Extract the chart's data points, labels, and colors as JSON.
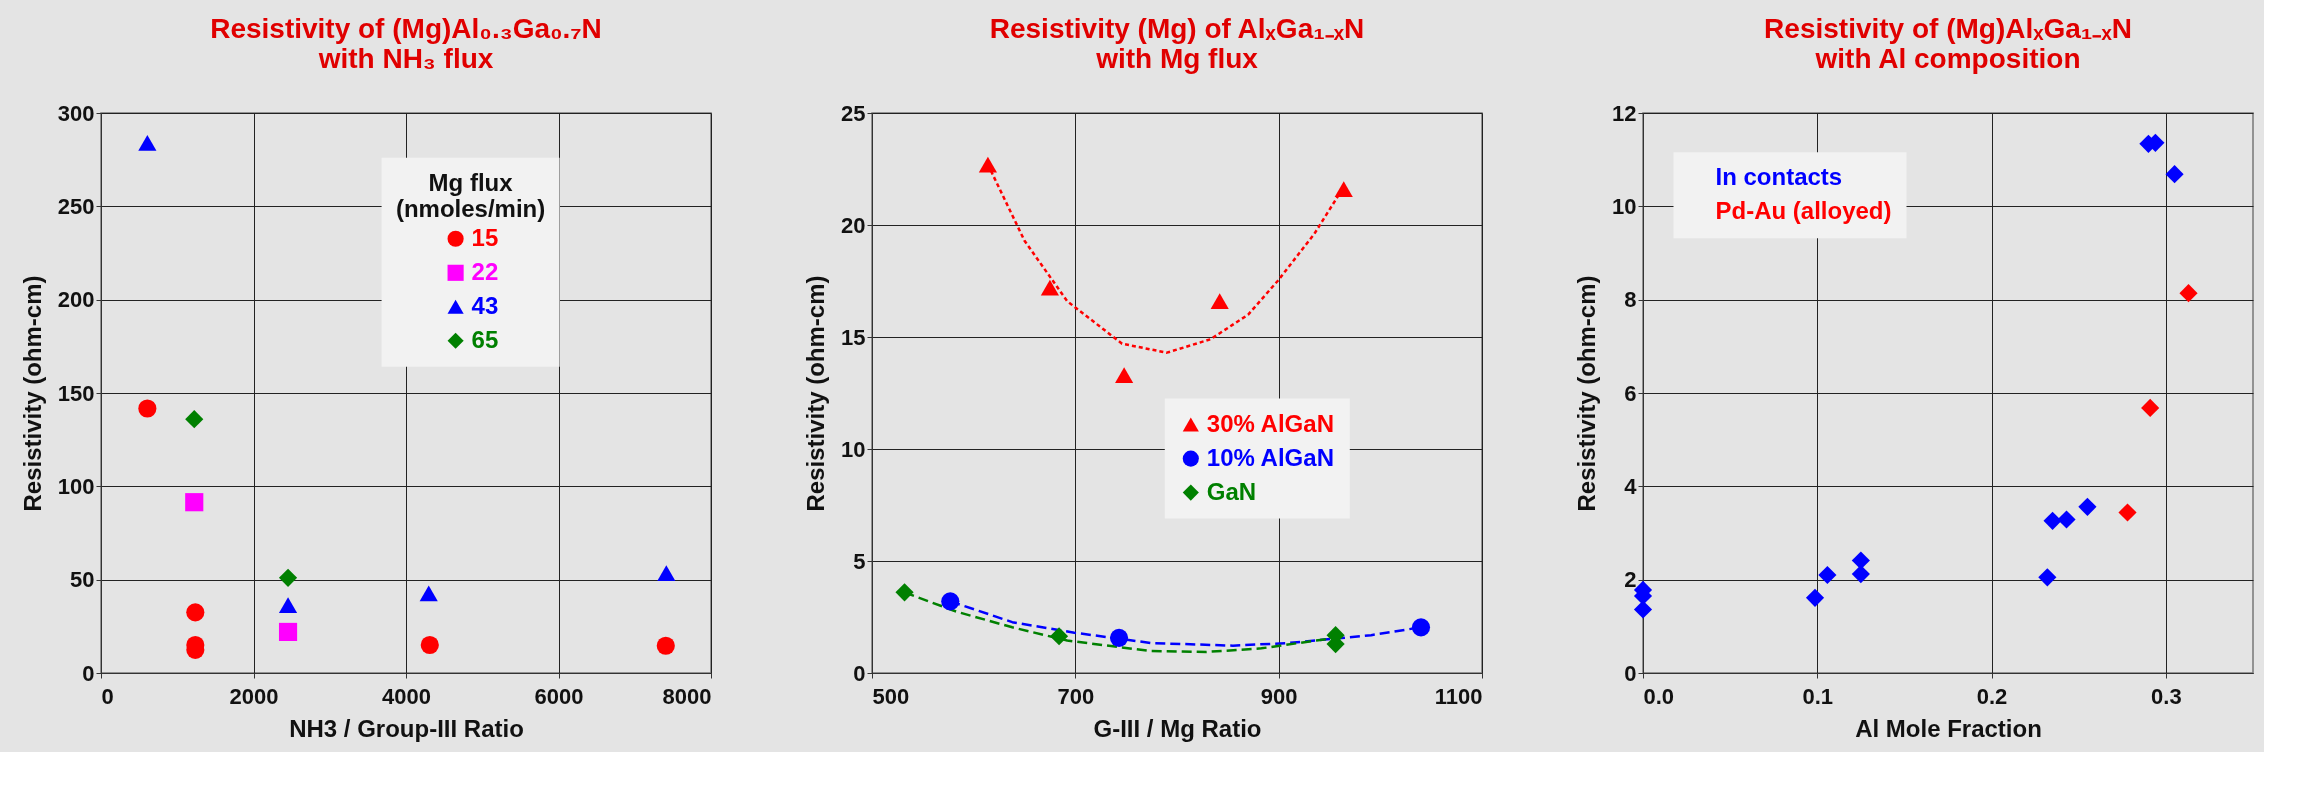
{
  "chart_data": [
    {
      "type": "scatter",
      "title": [
        "Resistivity of (Mg)Al₀.₃Ga₀.₇N",
        "with NH₃ flux"
      ],
      "xlabel": "NH3 / Group-III  Ratio",
      "ylabel": "Resistivity (ohm-cm)",
      "legend_title": "Mg flux\n(nmoles/min)",
      "xlim": [
        0,
        8000
      ],
      "xticks": [
        0,
        2000,
        4000,
        6000,
        8000
      ],
      "ylim": [
        0,
        300
      ],
      "yticks": [
        0,
        50,
        100,
        150,
        200,
        250,
        300
      ],
      "grid": true,
      "legend": "top right",
      "series": [
        {
          "name": "15",
          "color": "#ff0000",
          "marker": "circle",
          "x": [
            608,
            1237,
            1237,
            1237,
            4312,
            7407
          ],
          "values": [
            141.7,
            32.5,
            15,
            12.4,
            15,
            14.6
          ]
        },
        {
          "name": "22",
          "color": "#ff00ff",
          "marker": "square",
          "x": [
            1223,
            2453
          ],
          "values": [
            91.5,
            22
          ]
        },
        {
          "name": "43",
          "color": "#0000ff",
          "marker": "triangle",
          "x": [
            608,
            2453,
            4298,
            7414
          ],
          "values": [
            284,
            36.4,
            42.7,
            53.5
          ]
        },
        {
          "name": "65",
          "color": "#008000",
          "marker": "diamond",
          "x": [
            1223,
            2453
          ],
          "values": [
            136,
            51
          ]
        }
      ]
    },
    {
      "type": "scatter",
      "title": [
        "Resistivity (Mg) of AlₓGa₁₋ₓN",
        "with Mg flux"
      ],
      "xlabel": "G-III / Mg Ratio",
      "ylabel": "Resistivity (ohm-cm)",
      "xlim": [
        500,
        1100
      ],
      "xticks": [
        500,
        700,
        900,
        1100
      ],
      "ylim": [
        0,
        25
      ],
      "yticks": [
        0,
        5,
        10,
        15,
        20,
        25
      ],
      "grid": true,
      "legend": "right",
      "series": [
        {
          "name": "30% AlGaN",
          "color": "#ff0000",
          "marker": "triangle",
          "x": [
            614,
            675,
            748,
            842,
            964
          ],
          "values": [
            22.7,
            17.2,
            13.3,
            16.6,
            21.6
          ]
        },
        {
          "name": "10% AlGaN",
          "color": "#0000ff",
          "marker": "circle",
          "x": [
            577,
            743,
            1040
          ],
          "values": [
            3.2,
            1.57,
            2.04
          ]
        },
        {
          "name": "GaN",
          "color": "#008000",
          "marker": "diamond",
          "x": [
            532,
            684,
            956,
            956
          ],
          "values": [
            3.6,
            1.64,
            1.69,
            1.29
          ]
        },
        {
          "type": "line",
          "color": "#ff0000",
          "line_style": "dotted",
          "x": [
            614,
            650,
            692,
            746,
            790,
            833,
            870,
            899,
            935,
            964
          ],
          "values": [
            22.7,
            19.3,
            16.6,
            14.7,
            14.3,
            14.9,
            16.0,
            17.5,
            19.6,
            21.7
          ]
        },
        {
          "type": "line",
          "color": "#0000ff",
          "line_style": "dashed",
          "x": [
            577,
            638,
            699,
            774,
            855,
            910,
            991,
            1040
          ],
          "values": [
            3.2,
            2.27,
            1.8,
            1.34,
            1.22,
            1.34,
            1.69,
            2.04
          ]
        },
        {
          "type": "line",
          "color": "#008000",
          "line_style": "dashed",
          "x": [
            532,
            583,
            638,
            692,
            774,
            829,
            883,
            937,
            956
          ],
          "values": [
            3.6,
            2.74,
            2.04,
            1.45,
            0.98,
            0.94,
            1.1,
            1.45,
            1.57
          ]
        }
      ]
    },
    {
      "type": "scatter",
      "title": [
        "Resistivity of (Mg)AlₓGa₁₋ₓN",
        "with Al composition"
      ],
      "xlabel": "Al Mole Fraction",
      "ylabel": "Resistivity (ohm-cm)",
      "xlim": [
        0,
        0.35
      ],
      "xticks": [
        {
          "value": 0,
          "label": "0.0"
        },
        0.1,
        0.2,
        0.3
      ],
      "ylim": [
        0,
        12
      ],
      "yticks": [
        0,
        2,
        4,
        6,
        8,
        10,
        12
      ],
      "grid": true,
      "legend": "top left",
      "series": [
        {
          "name": "In contacts",
          "color": "#0000ff",
          "marker": "diamond",
          "x": [
            0,
            0,
            0,
            0.0987,
            0.1058,
            0.125,
            0.125,
            0.232,
            0.235,
            0.243,
            0.255,
            0.29,
            0.294,
            0.305
          ],
          "values": [
            1.78,
            1.65,
            1.36,
            1.61,
            2.1,
            2.41,
            2.12,
            2.05,
            3.26,
            3.29,
            3.56,
            11.34,
            11.36,
            10.69
          ]
        },
        {
          "name": "Pd-Au (alloyed)",
          "color": "#ff0000",
          "marker": "diamond",
          "x": [
            0.278,
            0.291,
            0.313
          ],
          "values": [
            3.44,
            5.68,
            8.14
          ]
        }
      ]
    }
  ]
}
